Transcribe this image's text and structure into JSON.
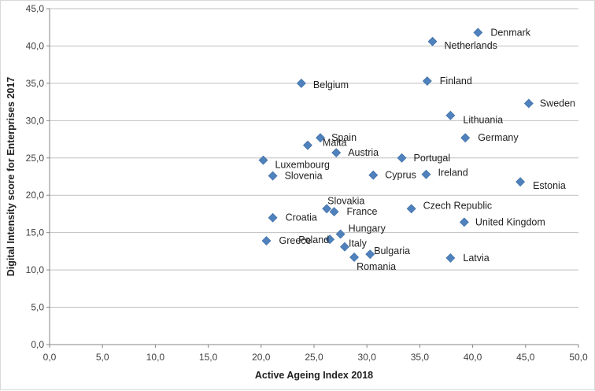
{
  "chart_data": {
    "type": "scatter",
    "xlabel": "Active Ageing Index 2018",
    "ylabel": "Digital Intensity score for Enterprises 2017",
    "xlim": [
      0,
      50
    ],
    "ylim": [
      0,
      45
    ],
    "x_ticks": [
      "0,0",
      "5,0",
      "10,0",
      "15,0",
      "20,0",
      "25,0",
      "30,0",
      "35,0",
      "40,0",
      "45,0",
      "50,0"
    ],
    "y_ticks": [
      "0,0",
      "5,0",
      "10,0",
      "15,0",
      "20,0",
      "25,0",
      "30,0",
      "35,0",
      "40,0",
      "45,0"
    ],
    "grid": "horizontal",
    "marker_color": "#4f81bd",
    "points": [
      {
        "label": "Denmark",
        "x": 40.5,
        "y": 41.8
      },
      {
        "label": "Netherlands",
        "x": 36.2,
        "y": 40.6
      },
      {
        "label": "Belgium",
        "x": 23.8,
        "y": 35.0
      },
      {
        "label": "Finland",
        "x": 35.7,
        "y": 35.3
      },
      {
        "label": "Sweden",
        "x": 45.3,
        "y": 32.3
      },
      {
        "label": "Lithuania",
        "x": 37.9,
        "y": 30.7
      },
      {
        "label": "Spain",
        "x": 25.6,
        "y": 27.7
      },
      {
        "label": "Germany",
        "x": 39.3,
        "y": 27.7
      },
      {
        "label": "Malta",
        "x": 24.4,
        "y": 26.7
      },
      {
        "label": "Austria",
        "x": 27.1,
        "y": 25.7
      },
      {
        "label": "Portugal",
        "x": 33.3,
        "y": 25.0
      },
      {
        "label": "Luxembourg",
        "x": 20.2,
        "y": 24.7
      },
      {
        "label": "Slovenia",
        "x": 21.1,
        "y": 22.6
      },
      {
        "label": "Cyprus",
        "x": 30.6,
        "y": 22.7
      },
      {
        "label": "Ireland",
        "x": 35.6,
        "y": 22.8
      },
      {
        "label": "Estonia",
        "x": 44.5,
        "y": 21.8
      },
      {
        "label": "Slovakia",
        "x": 26.2,
        "y": 18.2
      },
      {
        "label": "France",
        "x": 26.9,
        "y": 17.8
      },
      {
        "label": "Czech Republic",
        "x": 34.2,
        "y": 18.2
      },
      {
        "label": "Croatia",
        "x": 21.1,
        "y": 17.0
      },
      {
        "label": "United Kingdom",
        "x": 39.2,
        "y": 16.4
      },
      {
        "label": "Hungary",
        "x": 27.5,
        "y": 14.8
      },
      {
        "label": "Greece",
        "x": 20.5,
        "y": 13.9
      },
      {
        "label": "Poland",
        "x": 26.5,
        "y": 14.1
      },
      {
        "label": "Italy",
        "x": 27.9,
        "y": 13.1
      },
      {
        "label": "Bulgaria",
        "x": 30.3,
        "y": 12.1
      },
      {
        "label": "Romania",
        "x": 28.8,
        "y": 11.7
      },
      {
        "label": "Latvia",
        "x": 37.9,
        "y": 11.6
      }
    ]
  }
}
